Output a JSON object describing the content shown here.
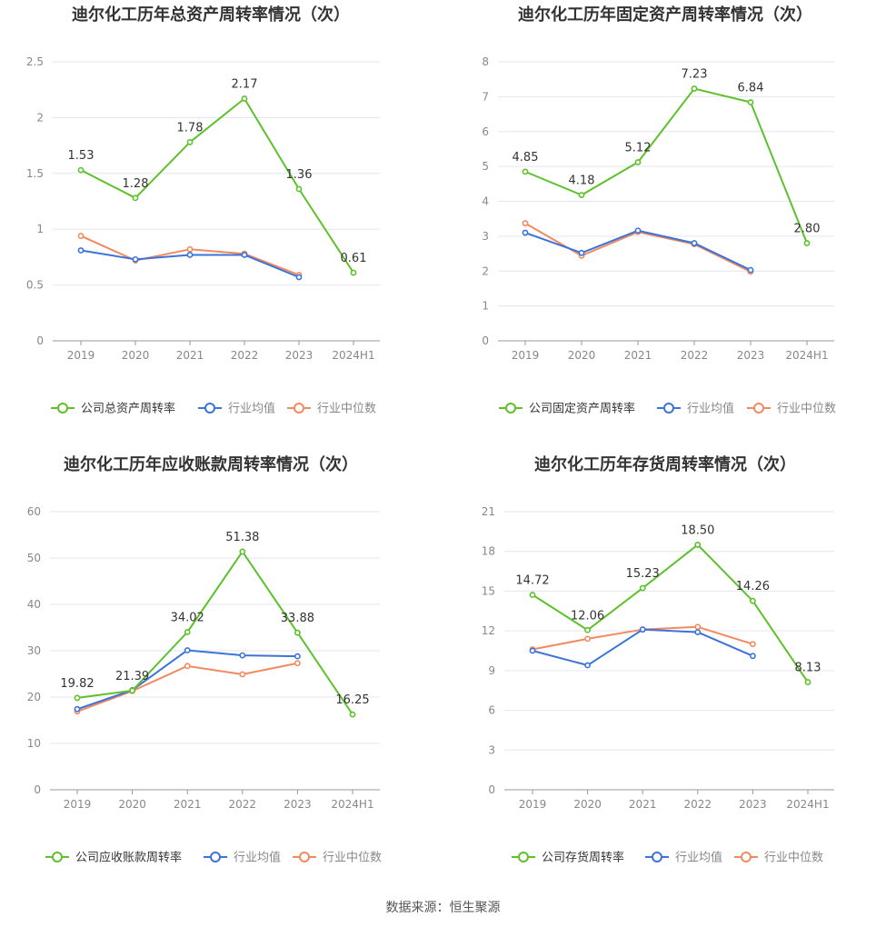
{
  "footer": {
    "source": "数据来源：恒生聚源"
  },
  "colors": {
    "company": "#5ec12b",
    "avg": "#3b73d9",
    "median": "#f28a60",
    "grid": "#e3e6ec",
    "axis": "#999999",
    "tick_text": "#888888",
    "title": "#333333"
  },
  "chart_data": [
    {
      "type": "line",
      "title": "迪尔化工历年总资产周转率情况（次）",
      "categories": [
        "2019",
        "2020",
        "2021",
        "2022",
        "2023",
        "2024H1"
      ],
      "y_ticks": [
        "0",
        "0.5",
        "1",
        "1.5",
        "2",
        "2.5"
      ],
      "ylim": [
        0,
        2.5
      ],
      "grid": true,
      "legend": "bottom",
      "series": [
        {
          "name": "公司总资产周转率",
          "values": [
            1.53,
            1.28,
            1.78,
            2.17,
            1.36,
            0.61
          ],
          "labels": [
            "1.53",
            "1.28",
            "1.78",
            "2.17",
            "1.36",
            "0.61"
          ]
        },
        {
          "name": "行业均值",
          "values": [
            0.81,
            0.73,
            0.77,
            0.77,
            0.57,
            null
          ]
        },
        {
          "name": "行业中位数",
          "values": [
            0.94,
            0.72,
            0.82,
            0.78,
            0.59,
            null
          ]
        }
      ]
    },
    {
      "type": "line",
      "title": "迪尔化工历年固定资产周转率情况（次）",
      "categories": [
        "2019",
        "2020",
        "2021",
        "2022",
        "2023",
        "2024H1"
      ],
      "y_ticks": [
        "0",
        "1",
        "2",
        "3",
        "4",
        "5",
        "6",
        "7",
        "8"
      ],
      "ylim": [
        0,
        8
      ],
      "grid": true,
      "legend": "bottom",
      "series": [
        {
          "name": "公司固定资产周转率",
          "values": [
            4.85,
            4.18,
            5.12,
            7.23,
            6.84,
            2.8
          ],
          "labels": [
            "4.85",
            "4.18",
            "5.12",
            "7.23",
            "6.84",
            "2.80"
          ]
        },
        {
          "name": "行业均值",
          "values": [
            3.1,
            2.52,
            3.16,
            2.8,
            2.03,
            null
          ]
        },
        {
          "name": "行业中位数",
          "values": [
            3.37,
            2.44,
            3.12,
            2.77,
            1.98,
            null
          ]
        }
      ]
    },
    {
      "type": "line",
      "title": "迪尔化工历年应收账款周转率情况（次）",
      "categories": [
        "2019",
        "2020",
        "2021",
        "2022",
        "2023",
        "2024H1"
      ],
      "y_ticks": [
        "0",
        "10",
        "20",
        "30",
        "40",
        "50",
        "60"
      ],
      "ylim": [
        0,
        60
      ],
      "grid": true,
      "legend": "bottom",
      "series": [
        {
          "name": "公司应收账款周转率",
          "values": [
            19.82,
            21.39,
            34.02,
            51.38,
            33.88,
            16.25
          ],
          "labels": [
            "19.82",
            "21.39",
            "34.02",
            "51.38",
            "33.88",
            "16.25"
          ]
        },
        {
          "name": "行业均值",
          "values": [
            17.4,
            21.5,
            30.1,
            29.0,
            28.8,
            null
          ]
        },
        {
          "name": "行业中位数",
          "values": [
            16.9,
            21.3,
            26.7,
            24.9,
            27.3,
            null
          ]
        }
      ]
    },
    {
      "type": "line",
      "title": "迪尔化工历年存货周转率情况（次）",
      "categories": [
        "2019",
        "2020",
        "2021",
        "2022",
        "2023",
        "2024H1"
      ],
      "y_ticks": [
        "0",
        "3",
        "6",
        "9",
        "12",
        "15",
        "18",
        "21"
      ],
      "ylim": [
        0,
        21
      ],
      "grid": true,
      "legend": "bottom",
      "series": [
        {
          "name": "公司存货周转率",
          "values": [
            14.72,
            12.06,
            15.23,
            18.5,
            14.26,
            8.13
          ],
          "labels": [
            "14.72",
            "12.06",
            "15.23",
            "18.50",
            "14.26",
            "8.13"
          ]
        },
        {
          "name": "行业均值",
          "values": [
            10.5,
            9.4,
            12.1,
            11.9,
            10.1,
            null
          ]
        },
        {
          "name": "行业中位数",
          "values": [
            10.6,
            11.4,
            12.1,
            12.3,
            11.0,
            null
          ]
        }
      ]
    }
  ]
}
